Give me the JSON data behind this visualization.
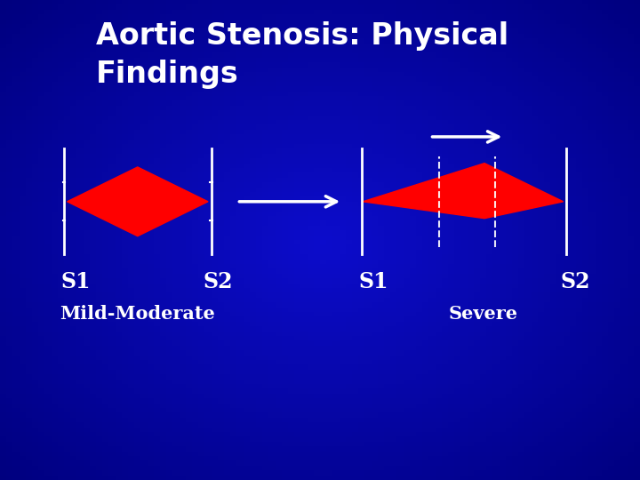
{
  "title_line1": "Aortic Stenosis: Physical",
  "title_line2": "Findings",
  "bg_color": "#0000BB",
  "title_color": "#FFFFFF",
  "label_color": "#FFFFFF",
  "s1_label": "S1",
  "s2_label": "S2",
  "mild_label": "Mild-Moderate",
  "severe_label": "Severe",
  "murmur_color": "#FF0000",
  "line_color": "#FFFFFF",
  "arrow_color": "#FFFFFF",
  "fig_width": 7.2,
  "fig_height": 5.4,
  "dpi": 100
}
